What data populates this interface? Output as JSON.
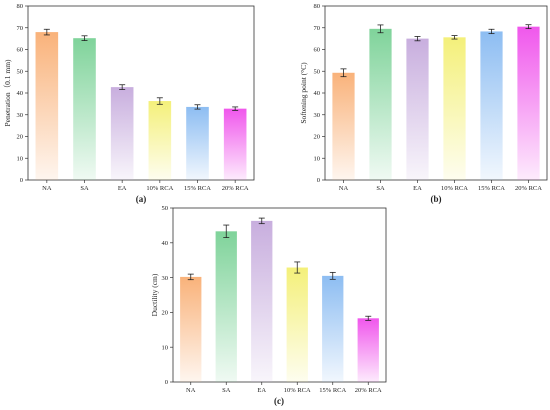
{
  "chart_data": [
    {
      "type": "bar",
      "panel_label": "(a)",
      "categories": [
        "NA",
        "SA",
        "EA",
        "10% RCA",
        "15% RCA",
        "20% RCA"
      ],
      "values": [
        68.0,
        65.2,
        42.7,
        36.3,
        33.6,
        32.8
      ],
      "errors": [
        1.3,
        1.1,
        1.1,
        1.5,
        1.0,
        0.8
      ],
      "title": "",
      "xlabel": "",
      "ylabel": "Penetration（0.1 mm)",
      "ylim": [
        0,
        80
      ],
      "yticks": [
        0,
        10,
        20,
        30,
        40,
        50,
        60,
        70,
        80
      ],
      "grid": false,
      "colors": [
        "#f9b27a",
        "#7fd39a",
        "#c8aede",
        "#f4f07a",
        "#8dbdf2",
        "#f057ec"
      ]
    },
    {
      "type": "bar",
      "panel_label": "(b)",
      "categories": [
        "NA",
        "SA",
        "EA",
        "10% RCA",
        "15% RCA",
        "20% RCA"
      ],
      "values": [
        49.3,
        69.5,
        65.0,
        65.6,
        68.3,
        70.5
      ],
      "errors": [
        1.8,
        1.8,
        1.0,
        0.8,
        1.0,
        0.9
      ],
      "title": "",
      "xlabel": "",
      "ylabel": "Softening point (°C)",
      "ylim": [
        0,
        80
      ],
      "yticks": [
        0,
        10,
        20,
        30,
        40,
        50,
        60,
        70,
        80
      ],
      "grid": false,
      "colors": [
        "#f9b27a",
        "#7fd39a",
        "#c8aede",
        "#f4f07a",
        "#8dbdf2",
        "#f057ec"
      ]
    },
    {
      "type": "bar",
      "panel_label": "(c)",
      "categories": [
        "NA",
        "SA",
        "EA",
        "10% RCA",
        "15% RCA",
        "20% RCA"
      ],
      "values": [
        30.2,
        43.3,
        46.3,
        32.9,
        30.5,
        18.3
      ],
      "errors": [
        0.8,
        1.8,
        0.8,
        1.6,
        1.0,
        0.6
      ],
      "title": "",
      "xlabel": "",
      "ylabel": "Ductility (cm)",
      "ylim": [
        0,
        50
      ],
      "yticks": [
        0,
        10,
        20,
        30,
        40,
        50
      ],
      "grid": false,
      "colors": [
        "#f9b27a",
        "#7fd39a",
        "#c8aede",
        "#f4f07a",
        "#8dbdf2",
        "#f057ec"
      ]
    }
  ]
}
